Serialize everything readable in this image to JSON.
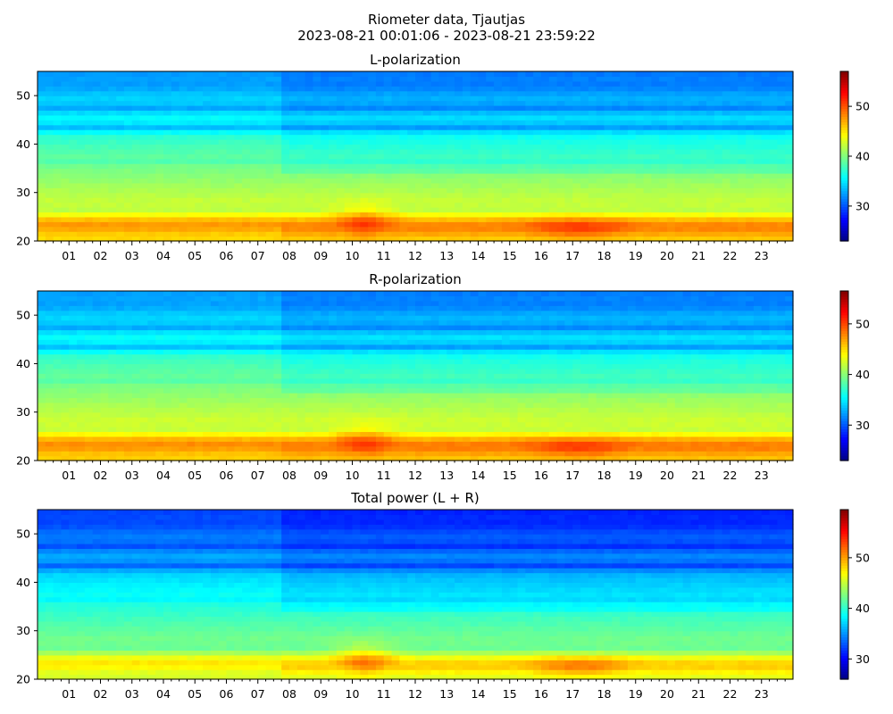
{
  "figure": {
    "title_line1": "Riometer data, Tjautjas",
    "title_line2": "2023-08-21 00:01:06 - 2023-08-21 23:59:22"
  },
  "chart_data": [
    {
      "type": "heatmap",
      "title": "L-polarization",
      "xlabel": "",
      "ylabel": "",
      "xlim": [
        0,
        24
      ],
      "ylim": [
        20,
        55
      ],
      "x_tick_labels": [
        "01",
        "02",
        "03",
        "04",
        "05",
        "06",
        "07",
        "08",
        "09",
        "10",
        "11",
        "12",
        "13",
        "14",
        "15",
        "16",
        "17",
        "18",
        "19",
        "20",
        "21",
        "22",
        "23"
      ],
      "y_ticks": [
        20,
        30,
        40,
        50
      ],
      "colorbar": {
        "range": [
          23,
          57
        ],
        "ticks": [
          30,
          40,
          50
        ],
        "colormap": "jet"
      },
      "enhancement_peak": 3.5
    },
    {
      "type": "heatmap",
      "title": "R-polarization",
      "xlabel": "",
      "ylabel": "",
      "xlim": [
        0,
        24
      ],
      "ylim": [
        20,
        55
      ],
      "x_tick_labels": [
        "01",
        "02",
        "03",
        "04",
        "05",
        "06",
        "07",
        "08",
        "09",
        "10",
        "11",
        "12",
        "13",
        "14",
        "15",
        "16",
        "17",
        "18",
        "19",
        "20",
        "21",
        "22",
        "23"
      ],
      "y_ticks": [
        20,
        30,
        40,
        50
      ],
      "colorbar": {
        "range": [
          23,
          56.5
        ],
        "ticks": [
          30,
          40,
          50
        ],
        "colormap": "jet"
      },
      "enhancement_peak": 3.0
    },
    {
      "type": "heatmap",
      "title": "Total power (L + R)",
      "xlabel": "",
      "ylabel": "",
      "xlim": [
        0,
        24
      ],
      "ylim": [
        20,
        55
      ],
      "x_tick_labels": [
        "01",
        "02",
        "03",
        "04",
        "05",
        "06",
        "07",
        "08",
        "09",
        "10",
        "11",
        "12",
        "13",
        "14",
        "15",
        "16",
        "17",
        "18",
        "19",
        "20",
        "21",
        "22",
        "23"
      ],
      "y_ticks": [
        20,
        30,
        40,
        50
      ],
      "colorbar": {
        "range": [
          26,
          59.5
        ],
        "ticks": [
          30,
          40,
          50
        ],
        "colormap": "jet"
      },
      "enhancement_peak": 4.0
    }
  ]
}
